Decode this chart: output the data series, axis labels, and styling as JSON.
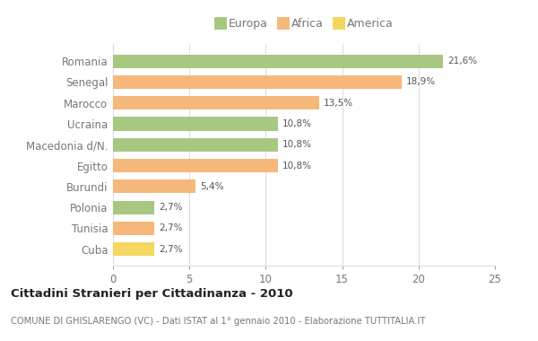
{
  "categories": [
    "Romania",
    "Senegal",
    "Marocco",
    "Ucraina",
    "Macedonia d/N.",
    "Egitto",
    "Burundi",
    "Polonia",
    "Tunisia",
    "Cuba"
  ],
  "values": [
    21.6,
    18.9,
    13.5,
    10.8,
    10.8,
    10.8,
    5.4,
    2.7,
    2.7,
    2.7
  ],
  "labels": [
    "21,6%",
    "18,9%",
    "13,5%",
    "10,8%",
    "10,8%",
    "10,8%",
    "5,4%",
    "2,7%",
    "2,7%",
    "2,7%"
  ],
  "colors": [
    "#a8c882",
    "#f5b87a",
    "#f5b87a",
    "#a8c882",
    "#a8c882",
    "#f5b87a",
    "#f5b87a",
    "#a8c882",
    "#f5b87a",
    "#f5d660"
  ],
  "legend_labels": [
    "Europa",
    "Africa",
    "America"
  ],
  "legend_colors": [
    "#a8c882",
    "#f5b87a",
    "#f5d660"
  ],
  "xlim": [
    0,
    25
  ],
  "xticks": [
    0,
    5,
    10,
    15,
    20,
    25
  ],
  "title": "Cittadini Stranieri per Cittadinanza - 2010",
  "subtitle": "COMUNE DI GHISLARENGO (VC) - Dati ISTAT al 1° gennaio 2010 - Elaborazione TUTTITALIA.IT",
  "bg_color": "#ffffff",
  "grid_color": "#dddddd",
  "text_color": "#777777",
  "title_color": "#222222",
  "subtitle_color": "#777777",
  "label_color": "#555555"
}
